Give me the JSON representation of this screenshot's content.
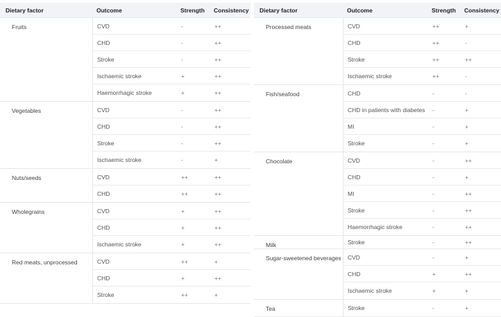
{
  "headers": {
    "factor": "Dietary factor",
    "outcome": "Outcome",
    "strength": "Strength",
    "consistency": "Consistency"
  },
  "left": [
    {
      "factor": "Fruits",
      "rows": [
        [
          "CVD",
          "-",
          "++"
        ],
        [
          "CHD",
          "-",
          "++"
        ],
        [
          "Stroke",
          "-",
          "++"
        ],
        [
          "Ischaemic stroke",
          "+",
          "++"
        ],
        [
          "Haemorrhagic stroke",
          "+",
          "++"
        ]
      ]
    },
    {
      "factor": "Vegetables",
      "rows": [
        [
          "CVD",
          "-",
          "++"
        ],
        [
          "CHD",
          "-",
          "++"
        ],
        [
          "Stroke",
          "-",
          "++"
        ],
        [
          "Ischaemic stroke",
          "-",
          "+"
        ]
      ]
    },
    {
      "factor": "Nuts/seeds",
      "rows": [
        [
          "CVD",
          "++",
          "++"
        ],
        [
          "CHD",
          "++",
          "++"
        ]
      ]
    },
    {
      "factor": "Wholegrains",
      "rows": [
        [
          "CVD",
          "+",
          "++"
        ],
        [
          "CHD",
          "+",
          "++"
        ],
        [
          "Ischaemic stroke",
          "+",
          "++"
        ]
      ]
    },
    {
      "factor": "Red meats, unprocessed",
      "rows": [
        [
          "CVD",
          "++",
          "+"
        ],
        [
          "CHD",
          "+",
          "++"
        ],
        [
          "Stroke",
          "++",
          "+"
        ]
      ]
    }
  ],
  "right": [
    {
      "factor": "Processed meats",
      "rows": [
        [
          "CVD",
          "++",
          "+"
        ],
        [
          "CHD",
          "++",
          "-"
        ],
        [
          "Stroke",
          "++",
          "++"
        ],
        [
          "Ischaemic stroke",
          "++",
          "-"
        ]
      ]
    },
    {
      "factor": "Fish/seafood",
      "rows": [
        [
          "CHD",
          "-",
          "-"
        ],
        [
          "CHD in patients with diabetes",
          "-",
          "+"
        ],
        [
          "MI",
          "-",
          "+"
        ],
        [
          "Stroke",
          "-",
          "+"
        ]
      ]
    },
    {
      "factor": "Chocolate",
      "rows": [
        [
          "CVD",
          "-",
          "++"
        ],
        [
          "CHD",
          "-",
          "+"
        ],
        [
          "MI",
          "-",
          "++"
        ],
        [
          "Stroke",
          "-",
          "++"
        ],
        [
          "Haemorrhagic stroke",
          "-",
          "++"
        ]
      ]
    },
    {
      "factor": "Milk",
      "rows": [
        [
          "Stroke",
          "-",
          "++"
        ]
      ]
    },
    {
      "factor": "Sugar-sweetened beverages",
      "rows": [
        [
          "CVD",
          "-",
          "+"
        ],
        [
          "CHD",
          "+",
          "++"
        ],
        [
          "Ischaemic stroke",
          "+",
          "+"
        ]
      ]
    },
    {
      "factor": "Tea",
      "rows": [
        [
          "Stroke",
          "-",
          "+"
        ]
      ]
    }
  ]
}
